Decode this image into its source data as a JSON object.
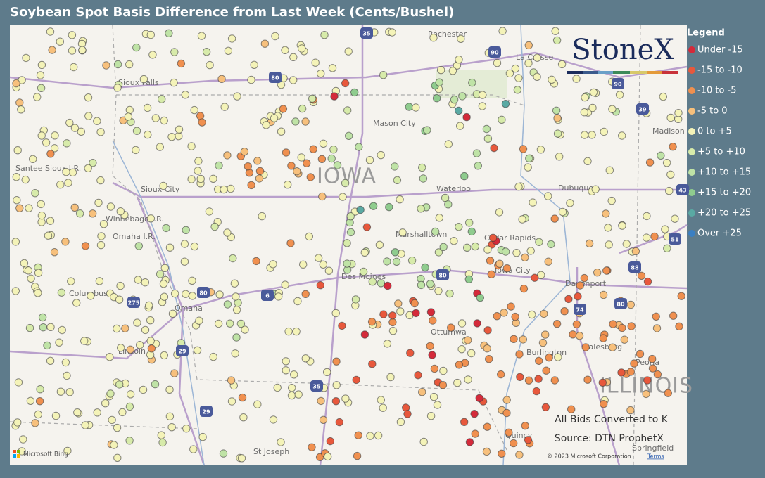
{
  "title": "Soybean Spot Basis Difference from Last Week (Cents/Bushel)",
  "legend": {
    "title": "Legend",
    "items": [
      {
        "label": "Under -15",
        "color": "#d42a3a"
      },
      {
        "label": "-15 to -10",
        "color": "#e8583c"
      },
      {
        "label": "-10 to -5",
        "color": "#f0904f"
      },
      {
        "label": "-5 to 0",
        "color": "#f7c07c"
      },
      {
        "label": "0 to +5",
        "color": "#f4f3b8"
      },
      {
        "label": "+5 to +10",
        "color": "#d7ebaa"
      },
      {
        "label": "+10 to +15",
        "color": "#bfe3a6"
      },
      {
        "label": "+15 to +20",
        "color": "#8fcc8e"
      },
      {
        "label": "+20 to +25",
        "color": "#5aa9a3"
      },
      {
        "label": "Over +25",
        "color": "#3a7fc2"
      }
    ]
  },
  "logo": "StoneX",
  "annotations": [
    "All Bids Converted to K",
    "Source: DTN ProphetX"
  ],
  "map_labels": [
    "Rochester",
    "La Crosse",
    "Sioux Falls",
    "Mason City",
    "IOWA",
    "Waterloo",
    "Dubuque",
    "Sioux City",
    "Santee Sioux I.R.",
    "Winnebago I.R.",
    "Omaha I.R.",
    "Marshalltown",
    "Cedar Rapids",
    "Des Moines",
    "Iowa City",
    "Davenport",
    "Columbus",
    "Omaha",
    "Ottumwa",
    "Burlington",
    "Galesburg",
    "Peoria",
    "ILLINOIS",
    "Lincoln",
    "Quincy",
    "St Joseph",
    "Springfield",
    "Madison"
  ],
  "highways": [
    "35",
    "90",
    "90",
    "39",
    "80",
    "80",
    "80",
    "80",
    "35",
    "29",
    "29",
    "74",
    "88",
    "51",
    "43",
    "6",
    "275"
  ],
  "footer": {
    "brand": "Microsoft Bing",
    "copyright": "© 2023 Microsoft Corporation",
    "terms": "Terms"
  }
}
